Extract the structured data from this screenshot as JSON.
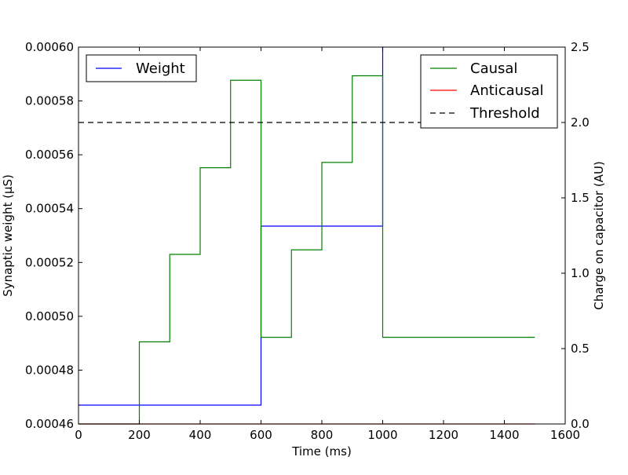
{
  "chart_data": {
    "type": "line",
    "xlabel": "Time (ms)",
    "ylabel_left": "Synaptic weight (μS)",
    "ylabel_right": "Charge on capacitor (AU)",
    "xlim": [
      0,
      1600
    ],
    "ylim_left": [
      0.00046,
      0.0006
    ],
    "ylim_right": [
      0.0,
      2.5
    ],
    "x_ticks": [
      0,
      200,
      400,
      600,
      800,
      1000,
      1200,
      1400,
      1600
    ],
    "x_tick_labels": [
      "0",
      "200",
      "400",
      "600",
      "800",
      "1000",
      "1200",
      "1400",
      "1600"
    ],
    "y_left_ticks": [
      0.00046,
      0.00048,
      0.0005,
      0.00052,
      0.00054,
      0.00056,
      0.00058,
      0.0006
    ],
    "y_left_tick_labels": [
      "0.00046",
      "0.00048",
      "0.00050",
      "0.00052",
      "0.00054",
      "0.00056",
      "0.00058",
      "0.00060"
    ],
    "y_right_ticks": [
      0.0,
      0.5,
      1.0,
      1.5,
      2.0,
      2.5
    ],
    "y_right_tick_labels": [
      "0.0",
      "0.5",
      "1.0",
      "1.5",
      "2.0",
      "2.5"
    ],
    "grid": false,
    "legends": [
      {
        "placement": "top-left",
        "entries": [
          "Weight"
        ]
      },
      {
        "placement": "top-right",
        "entries": [
          "Causal",
          "Anticausal",
          "Threshold"
        ]
      }
    ],
    "series": [
      {
        "name": "Weight",
        "axis": "left",
        "color": "#0000ff",
        "style": "solid",
        "step": true,
        "x": [
          0,
          600,
          600,
          1000,
          1000
        ],
        "y": [
          0.000467,
          0.000467,
          0.0005335,
          0.0005335,
          0.0006
        ]
      },
      {
        "name": "Causal",
        "axis": "right",
        "color": "#008000",
        "style": "solid",
        "step": true,
        "x": [
          0,
          200,
          200,
          300,
          300,
          400,
          400,
          500,
          500,
          600,
          600,
          700,
          700,
          800,
          800,
          900,
          900,
          1000,
          1000,
          1500
        ],
        "y": [
          0.0,
          0.0,
          0.545,
          0.545,
          1.125,
          1.125,
          1.7,
          1.7,
          2.28,
          2.28,
          0.575,
          0.575,
          1.155,
          1.155,
          1.735,
          1.735,
          2.31,
          2.31,
          0.575,
          0.575
        ]
      },
      {
        "name": "Anticausal",
        "axis": "right",
        "color": "#ff0000",
        "style": "solid",
        "step": true,
        "x": [
          0,
          1500
        ],
        "y": [
          0.0,
          0.0
        ]
      },
      {
        "name": "Threshold",
        "axis": "right",
        "color": "#000000",
        "style": "dashed",
        "step": false,
        "x": [
          0,
          1500
        ],
        "y": [
          2.0,
          2.0
        ]
      }
    ]
  }
}
